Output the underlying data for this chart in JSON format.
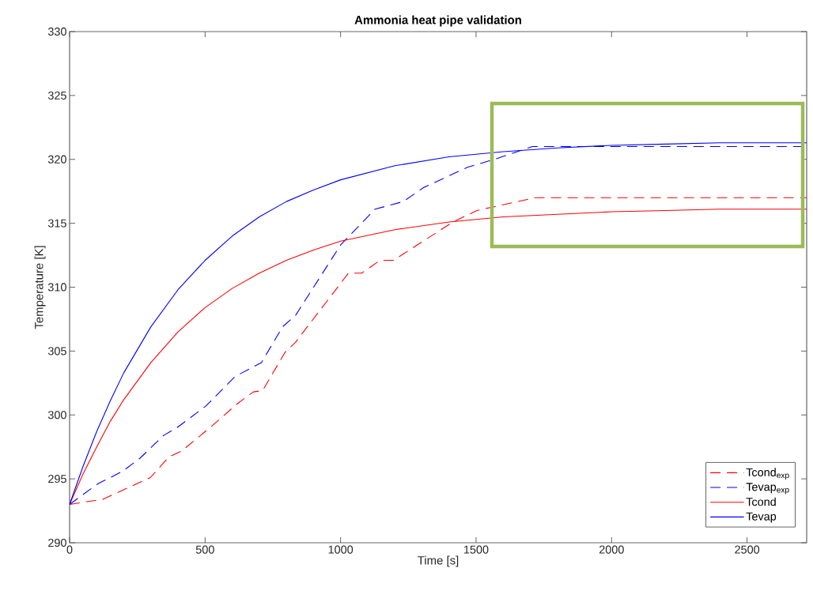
{
  "chart_data": {
    "type": "line",
    "title": "Ammonia heat pipe validation",
    "xlabel": "Time [s]",
    "ylabel": "Temperature [K]",
    "xlim": [
      0,
      2720
    ],
    "ylim": [
      290,
      330
    ],
    "xticks": [
      0,
      500,
      1000,
      1500,
      2000,
      2500
    ],
    "yticks": [
      290,
      295,
      300,
      305,
      310,
      315,
      320,
      325,
      330
    ],
    "legend": "bottom right",
    "series": [
      {
        "name": "Tcond$_{exp}$",
        "color": "#ff0000",
        "line_style": "dashed",
        "x": [
          0,
          123,
          298,
          366,
          415,
          523,
          620,
          678,
          712,
          795,
          834,
          1029,
          1078,
          1146,
          1195,
          1290,
          1415,
          1503,
          1567,
          1719,
          2720
        ],
        "values": [
          293.0,
          293.4,
          295.1,
          296.7,
          297.2,
          299.1,
          300.9,
          301.8,
          301.9,
          304.9,
          305.7,
          311.1,
          311.1,
          312.1,
          312.1,
          313.4,
          315.1,
          316.0,
          316.3,
          317.0,
          317.0
        ]
      },
      {
        "name": "Tevap$_{exp}$",
        "color": "#0000ff",
        "line_style": "dashed",
        "x": [
          0,
          103,
          196,
          259,
          347,
          396,
          503,
          610,
          708,
          786,
          834,
          1000,
          1127,
          1231,
          1307,
          1470,
          1567,
          1665,
          1708,
          2720
        ],
        "values": [
          293.0,
          294.6,
          295.6,
          296.6,
          298.4,
          299.0,
          300.7,
          303.0,
          304.1,
          306.9,
          307.8,
          313.3,
          316.1,
          316.7,
          317.8,
          319.4,
          320.0,
          320.7,
          321.0,
          321.0
        ]
      },
      {
        "name": "Tcond",
        "color": "#ff0000",
        "line_style": "solid",
        "x": [
          0,
          50,
          100,
          150,
          200,
          300,
          400,
          500,
          600,
          700,
          800,
          900,
          1000,
          1200,
          1400,
          1600,
          1800,
          2000,
          2200,
          2400,
          2720
        ],
        "values": [
          293.0,
          295.4,
          297.5,
          299.5,
          301.2,
          304.1,
          306.5,
          308.4,
          309.9,
          311.1,
          312.1,
          312.9,
          313.6,
          314.5,
          315.1,
          315.5,
          315.7,
          315.9,
          316.0,
          316.1,
          316.1
        ]
      },
      {
        "name": "Tevap",
        "color": "#0000ff",
        "line_style": "solid",
        "x": [
          0,
          50,
          100,
          150,
          200,
          300,
          400,
          500,
          600,
          700,
          800,
          900,
          1000,
          1200,
          1400,
          1600,
          1800,
          2000,
          2200,
          2400,
          2720
        ],
        "values": [
          293.0,
          296.0,
          298.7,
          301.1,
          303.3,
          306.9,
          309.8,
          312.1,
          314.0,
          315.5,
          316.7,
          317.6,
          318.4,
          319.5,
          320.2,
          320.6,
          320.9,
          321.1,
          321.2,
          321.3,
          321.3
        ]
      }
    ]
  }
}
